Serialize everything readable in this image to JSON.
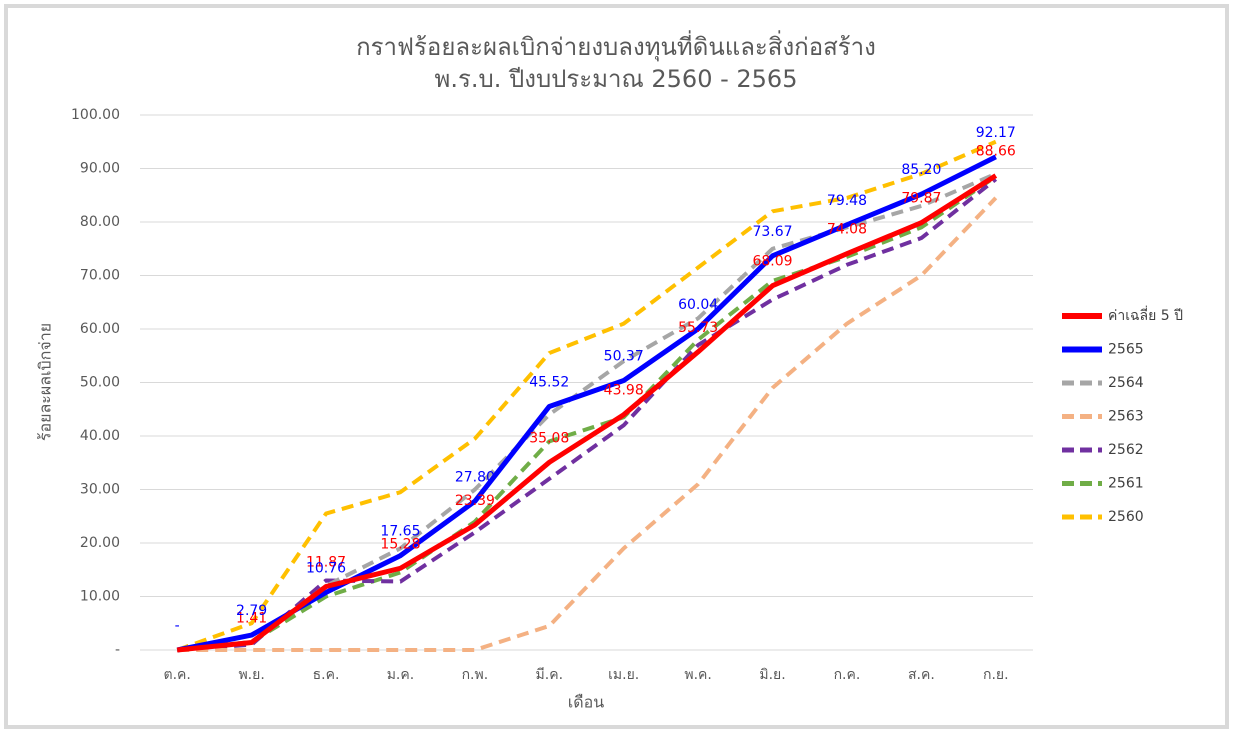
{
  "chart_data": {
    "type": "line",
    "title": "กราฟร้อยละผลเบิกจ่ายงบลงทุนที่ดินและสิ่งก่อสร้าง",
    "subtitle": "พ.ร.บ. ปีงบประมาณ 2560 - 2565",
    "x_label": "เดือน",
    "y_label": "ร้อยละผลเบิกจ่าย",
    "categories": [
      "ต.ค.",
      "พ.ย.",
      "ธ.ค.",
      "ม.ค.",
      "ก.พ.",
      "มี.ค.",
      "เม.ย.",
      "พ.ค.",
      "มิ.ย.",
      "ก.ค.",
      "ส.ค.",
      "ก.ย."
    ],
    "ylim": [
      0,
      100
    ],
    "yticks": [
      {
        "value": 0,
        "label": "-"
      },
      {
        "value": 10,
        "label": "10.00"
      },
      {
        "value": 20,
        "label": "20.00"
      },
      {
        "value": 30,
        "label": "30.00"
      },
      {
        "value": 40,
        "label": "40.00"
      },
      {
        "value": 50,
        "label": "50.00"
      },
      {
        "value": 60,
        "label": "60.00"
      },
      {
        "value": 70,
        "label": "70.00"
      },
      {
        "value": 80,
        "label": "80.00"
      },
      {
        "value": 90,
        "label": "90.00"
      },
      {
        "value": 100,
        "label": "100.00"
      }
    ],
    "grid": true,
    "legend": "right",
    "series": [
      {
        "name": "ค่าเฉลี่ย 5 ปี",
        "color": "#ff0000",
        "dashed": false,
        "width": 5,
        "values": [
          0,
          1.41,
          11.87,
          15.28,
          23.39,
          35.08,
          43.98,
          55.73,
          68.09,
          74.08,
          79.87,
          88.66
        ],
        "value_labels": [
          null,
          "1.41",
          "11.87",
          "15.28",
          "23.39",
          "35.08",
          "43.98",
          "55.73",
          "68.09",
          "74.08",
          "79.87",
          "88.66"
        ]
      },
      {
        "name": "2565",
        "color": "#0000ff",
        "dashed": false,
        "width": 5,
        "values": [
          0,
          2.79,
          10.76,
          17.65,
          27.8,
          45.52,
          50.37,
          60.04,
          73.67,
          79.48,
          85.2,
          92.17
        ],
        "value_labels": [
          "-",
          "2.79",
          "10.76",
          "17.65",
          "27.80",
          "45.52",
          "50.37",
          "60.04",
          "73.67",
          "79.48",
          "85.20",
          "92.17"
        ]
      },
      {
        "name": "2564",
        "color": "#a6a6a6",
        "dashed": true,
        "width": 4,
        "values": [
          0,
          1.5,
          12,
          19,
          30,
          44,
          54,
          62,
          75,
          79,
          83,
          89
        ]
      },
      {
        "name": "2563",
        "color": "#f4b183",
        "dashed": true,
        "width": 4,
        "values": [
          0,
          0,
          0,
          0,
          0,
          4.5,
          19,
          31,
          49,
          61,
          70,
          84.5
        ]
      },
      {
        "name": "2562",
        "color": "#7030a0",
        "dashed": true,
        "width": 4,
        "values": [
          0,
          1,
          13,
          12.8,
          22,
          32,
          42,
          57,
          65.5,
          72,
          77,
          88
        ]
      },
      {
        "name": "2561",
        "color": "#70ad47",
        "dashed": true,
        "width": 4,
        "values": [
          0,
          1.5,
          10,
          14.5,
          24,
          39,
          43.5,
          58,
          69,
          73.5,
          79,
          88.5
        ]
      },
      {
        "name": "2560",
        "color": "#ffc000",
        "dashed": true,
        "width": 4,
        "values": [
          0,
          5,
          25.5,
          29.5,
          39.5,
          55.5,
          61,
          71.5,
          82,
          84.5,
          89,
          95
        ]
      }
    ]
  }
}
